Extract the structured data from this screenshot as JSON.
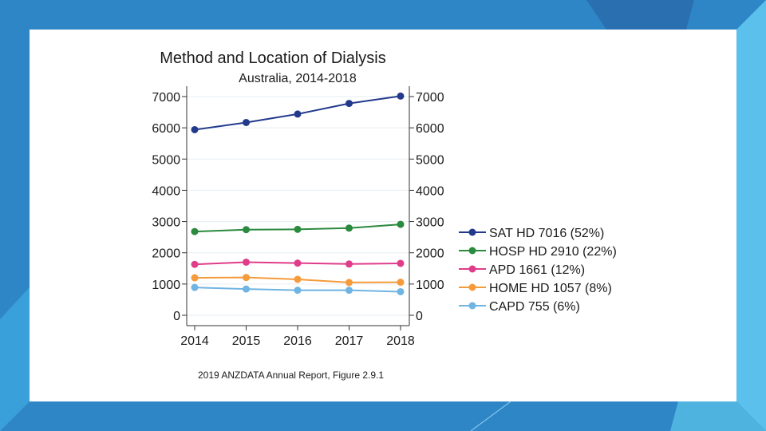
{
  "slide": {
    "background_color": "#2f86c6",
    "accent_color": "#5bc0eb",
    "card_color": "#ffffff"
  },
  "chart_data": {
    "type": "line",
    "title": "Method and Location of Dialysis",
    "subtitle": "Australia, 2014-2018",
    "xlabel": "",
    "ylabel": "",
    "x": [
      2014,
      2015,
      2016,
      2017,
      2018
    ],
    "x_tick_labels": [
      "2014",
      "2015",
      "2016",
      "2017",
      "2018"
    ],
    "ylim": [
      0,
      7000
    ],
    "y_ticks": [
      0,
      1000,
      2000,
      3000,
      4000,
      5000,
      6000,
      7000
    ],
    "y_tick_labels": [
      "0",
      "1000",
      "2000",
      "3000",
      "4000",
      "5000",
      "6000",
      "7000"
    ],
    "grid": true,
    "dual_y_axis": true,
    "legend_position": "right",
    "series": [
      {
        "name": "SAT HD 7016 (52%)",
        "color": "#233a8c",
        "values": [
          5940,
          6170,
          6440,
          6780,
          7016
        ]
      },
      {
        "name": "HOSP HD 2910 (22%)",
        "color": "#2a8a3e",
        "values": [
          2680,
          2740,
          2750,
          2790,
          2910
        ]
      },
      {
        "name": "APD 1661 (12%)",
        "color": "#e03c8a",
        "values": [
          1630,
          1700,
          1670,
          1640,
          1661
        ]
      },
      {
        "name": "HOME HD 1057 (8%)",
        "color": "#f59b3c",
        "values": [
          1200,
          1210,
          1150,
          1050,
          1057
        ]
      },
      {
        "name": "CAPD 755 (6%)",
        "color": "#6fb4e3",
        "values": [
          890,
          840,
          800,
          800,
          755
        ]
      }
    ],
    "source_note": "2019 ANZDATA Annual Report, Figure 2.9.1"
  }
}
